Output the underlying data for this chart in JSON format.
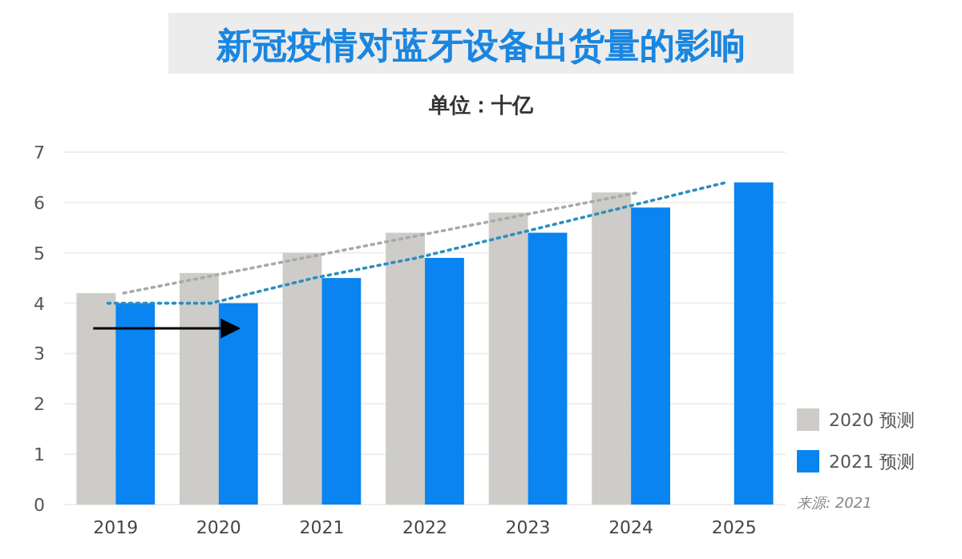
{
  "chart_data": {
    "type": "bar",
    "title": "新冠疫情对蓝牙设备出货量的影响",
    "subtitle": "单位：十亿",
    "categories": [
      "2019",
      "2020",
      "2021",
      "2022",
      "2023",
      "2024",
      "2025"
    ],
    "series": [
      {
        "name": "2020 预测",
        "color": "#cdccc8",
        "values": [
          4.2,
          4.6,
          5.0,
          5.4,
          5.8,
          6.2,
          null
        ]
      },
      {
        "name": "2021 预测",
        "color": "#0a84f0",
        "values": [
          4.0,
          4.0,
          4.5,
          4.9,
          5.4,
          5.9,
          6.4
        ]
      },
      {
        "type": "line",
        "color": "#a9a9a9",
        "values": [
          4.2,
          4.6,
          5.0,
          5.4,
          5.8,
          6.2,
          null
        ]
      },
      {
        "type": "line",
        "color": "#2a8fc0",
        "values": [
          4.0,
          4.0,
          4.5,
          4.9,
          5.4,
          5.9,
          6.4
        ]
      }
    ],
    "ylim": [
      0,
      7
    ],
    "yticks": [
      0,
      1,
      2,
      3,
      4,
      5,
      6,
      7
    ],
    "grid": "y",
    "legend": "bottom right",
    "line_style": "dotted",
    "marker": "none",
    "annotations": [
      "来源: 2021"
    ]
  }
}
